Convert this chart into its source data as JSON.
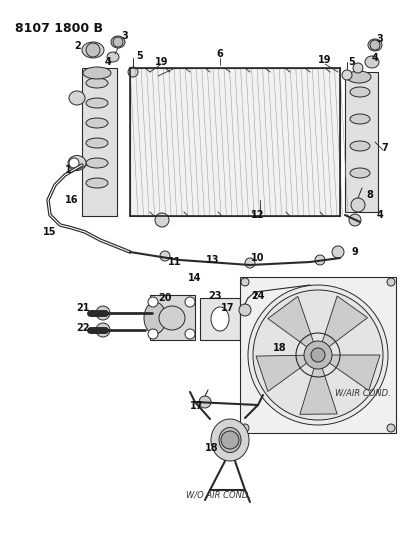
{
  "title": "8107 1800 B",
  "bg_color": "#ffffff",
  "lc": "#2a2a2a",
  "title_fs": 9,
  "label_fs": 7,
  "annot_fs": 6,
  "fig_w": 4.11,
  "fig_h": 5.33,
  "dpi": 100
}
